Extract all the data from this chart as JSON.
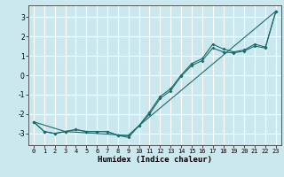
{
  "title": "",
  "xlabel": "Humidex (Indice chaleur)",
  "ylabel": "",
  "background_color": "#cce8ef",
  "grid_color": "#ffffff",
  "line_color": "#1a6b6b",
  "xlim": [
    -0.5,
    23.5
  ],
  "ylim": [
    -3.6,
    3.6
  ],
  "x_ticks": [
    0,
    1,
    2,
    3,
    4,
    5,
    6,
    7,
    8,
    9,
    10,
    11,
    12,
    13,
    14,
    15,
    16,
    17,
    18,
    19,
    20,
    21,
    22,
    23
  ],
  "y_ticks": [
    -3,
    -2,
    -1,
    0,
    1,
    2,
    3
  ],
  "series1_x": [
    0,
    1,
    2,
    3,
    4,
    5,
    6,
    7,
    8,
    9,
    10,
    11,
    12,
    13,
    14,
    15,
    16,
    17,
    18,
    19,
    20,
    21,
    22,
    23
  ],
  "series1_y": [
    -2.4,
    -2.9,
    -3.0,
    -2.9,
    -2.8,
    -2.9,
    -2.9,
    -2.9,
    -3.1,
    -3.2,
    -2.6,
    -2.0,
    -1.2,
    -0.8,
    -0.05,
    0.5,
    0.75,
    1.4,
    1.2,
    1.15,
    1.25,
    1.5,
    1.4,
    3.3
  ],
  "series2_x": [
    0,
    1,
    2,
    3,
    4,
    5,
    6,
    7,
    8,
    9,
    10,
    11,
    12,
    13,
    14,
    15,
    16,
    17,
    18,
    19,
    20,
    21,
    22,
    23
  ],
  "series2_y": [
    -2.4,
    -2.9,
    -3.0,
    -2.9,
    -2.8,
    -2.9,
    -2.9,
    -2.9,
    -3.1,
    -3.1,
    -2.6,
    -1.9,
    -1.1,
    -0.7,
    0.0,
    0.6,
    0.85,
    1.6,
    1.35,
    1.2,
    1.3,
    1.6,
    1.45,
    3.3
  ],
  "series3_x": [
    0,
    3,
    9,
    10,
    23
  ],
  "series3_y": [
    -2.4,
    -2.9,
    -3.1,
    -2.6,
    3.3
  ],
  "tick_fontsize": 5.0,
  "xlabel_fontsize": 6.5
}
